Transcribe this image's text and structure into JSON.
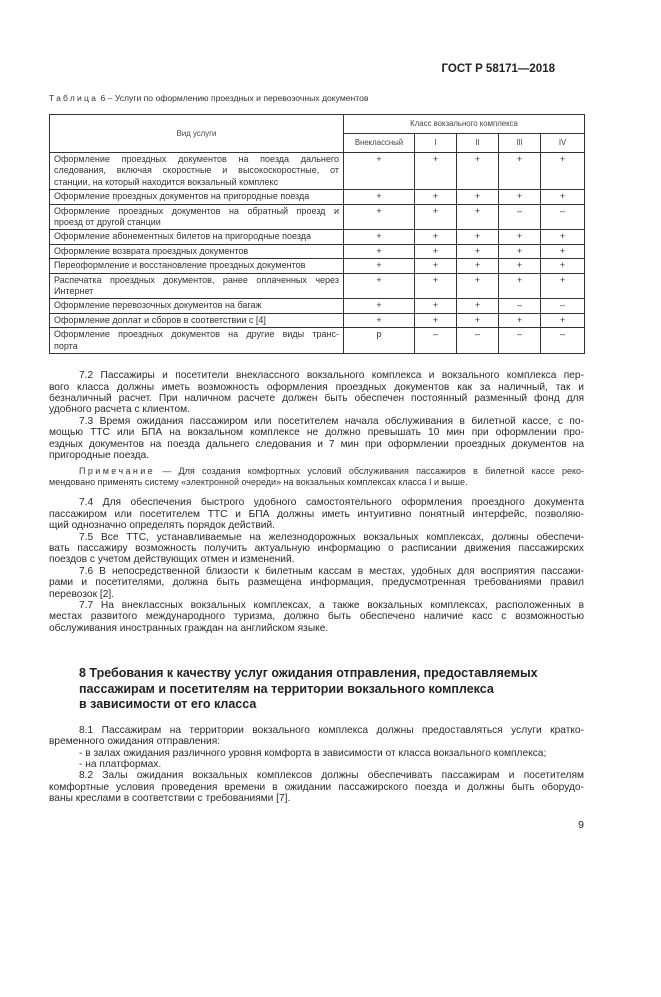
{
  "header": {
    "doc_code": "ГОСТ Р 58171—2018"
  },
  "table": {
    "caption_label": "Таблица",
    "caption_text": " 6 – Услуги по оформлению проездных и перевозочных документов",
    "col_service": "Вид услуги",
    "col_group": "Класс вокзального комплекса",
    "classes": [
      "Внеклассный",
      "I",
      "II",
      "III",
      "IV"
    ],
    "rows": [
      {
        "service": [
          "Оформление проездных документов на поезда дальнего",
          "следования, включая скоростные и высокоскоростные, от",
          "станции, на который находится вокзальный комплекс"
        ],
        "marks": [
          "+",
          "+",
          "+",
          "+",
          "+"
        ]
      },
      {
        "service": [
          "Оформление проездных документов на пригородные поезда"
        ],
        "marks": [
          "+",
          "+",
          "+",
          "+",
          "+"
        ]
      },
      {
        "service": [
          "Оформление проездных документов на обратный проезд и",
          "проезд от другой станции"
        ],
        "marks": [
          "+",
          "+",
          "+",
          "–",
          "–"
        ]
      },
      {
        "service": [
          "Оформление абонементных билетов на пригородные поезда"
        ],
        "marks": [
          "+",
          "+",
          "+",
          "+",
          "+"
        ]
      },
      {
        "service": [
          "Оформление возврата проездных документов"
        ],
        "marks": [
          "+",
          "+",
          "+",
          "+",
          "+"
        ]
      },
      {
        "service": [
          "Переоформление и восстановление проездных документов"
        ],
        "marks": [
          "+",
          "+",
          "+",
          "+",
          "+"
        ]
      },
      {
        "service": [
          "Распечатка проездных документов, ранее оплаченных через",
          "Интернет"
        ],
        "marks": [
          "+",
          "+",
          "+",
          "+",
          "+"
        ]
      },
      {
        "service": [
          "Оформление перевозочных документов на багаж"
        ],
        "marks": [
          "+",
          "+",
          "+",
          "–",
          "–"
        ]
      },
      {
        "service": [
          "Оформление доплат и сборов в соответствии с [4]"
        ],
        "marks": [
          "+",
          "+",
          "+",
          "+",
          "+"
        ]
      },
      {
        "service": [
          "Оформление проездных документов на другие виды транс-",
          "порта"
        ],
        "marks": [
          "р",
          "–",
          "–",
          "–",
          "–"
        ]
      }
    ]
  },
  "paragraphs_7a": [
    [
      "7.2 Пассажиры и посетители внеклассного вокзального комплекса и вокзального комплекса пер-",
      "вого класса должны иметь возможность оформления проездных документов как за наличный, так и",
      "безналичный расчет. При наличном расчете должен быть обеспечен постоянный разменный фонд для",
      "удобного расчета с клиентом."
    ],
    [
      "7.3 Время ожидания пассажиром или посетителем начала обслуживания в билетной кассе, с по-",
      "мощью ТТС или БПА на вокзальном комплексе не должно превышать 10 мин при оформлении про-",
      "ездных документов на поезда дальнего следования и 7 мин при оформлении проездных документов на",
      "пригородные поезда."
    ]
  ],
  "note": {
    "label": "Примечание",
    "lines": [
      " — Для создания комфортных условий обслуживания пассажиров в билетной кассе реко-",
      "мендовано применять систему «электронной очереди» на вокзальных комплексах класса I и выше."
    ]
  },
  "paragraphs_7b": [
    [
      "7.4 Для обеспечения быстрого удобного самостоятельного оформления проездного документа",
      "пассажиром или посетителем ТТС и БПА должны иметь интуитивно понятный интерфейс, позволяю-",
      "щий однозначно определять порядок действий."
    ],
    [
      "7.5 Все ТТС, устанавливаемые на железнодорожных вокзальных комплексах, должны обеспечи-",
      "вать пассажиру возможность получить актуальную информацию о расписании движения пассажирских",
      "поездов с учетом действующих отмен и изменений."
    ],
    [
      "7.6 В непосредственной близости к билетным кассам в местах, удобных для восприятия пассажи-",
      "рами и посетителями, должна быть размещена информация, предусмотренная требованиями правил",
      "перевозок [2]."
    ],
    [
      "7.7 На внеклассных вокзальных комплексах, а также вокзальных комплексах, расположенных в",
      "местах развитого международного туризма, должно быть обеспечено наличие касс с возможностью",
      "обслуживания иностранных граждан на английском языке."
    ]
  ],
  "section8": {
    "heading": [
      "8 Требования к качеству услуг ожидания отправления, предоставляемых",
      "пассажирам и посетителям на территории вокзального комплекса",
      "в зависимости от его класса"
    ],
    "paragraphs": [
      [
        "8.1 Пассажирам на территории вокзального комплекса должны предоставляться услуги кратко-",
        "временного ожидания отправления:"
      ],
      [
        "- в залах ожидания различного уровня комфорта в зависимости от класса вокзального комплекса;"
      ],
      [
        "- на платформах."
      ],
      [
        "8.2 Залы ожидания вокзальных комплексов должны обеспечивать пассажирам и посетителям",
        "комфортные условия проведения времени в ожидании пассажирского поезда и должны быть оборудо-",
        "ваны креслами в соответствии с требованиями [7]."
      ]
    ]
  },
  "page_number": "9"
}
